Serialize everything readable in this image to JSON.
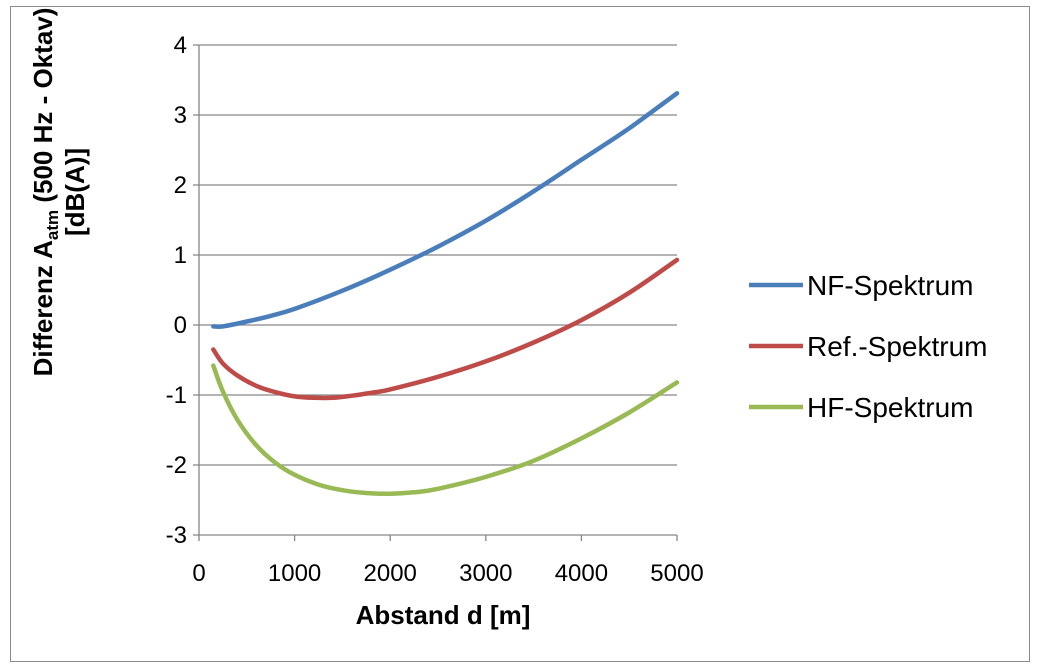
{
  "chart_data": {
    "type": "line",
    "xlabel": "Abstand d [m]",
    "ylabel": {
      "prefix": "Differenz A",
      "subscript": "atm",
      "suffix": " (500 Hz - Oktav)",
      "line2": "[dB(A)]"
    },
    "xlim": [
      0,
      5000
    ],
    "ylim": [
      -3,
      4
    ],
    "xticks": [
      0,
      1000,
      2000,
      3000,
      4000,
      5000
    ],
    "yticks": [
      4,
      3,
      2,
      1,
      0,
      -1,
      -2,
      -3
    ],
    "grid": "horizontal",
    "legend_position": "right",
    "series": [
      {
        "name": "NF-Spektrum",
        "color": "#4a7ebb",
        "x": [
          150,
          250,
          500,
          750,
          1000,
          1500,
          2000,
          2500,
          3000,
          3500,
          4000,
          4500,
          5000
        ],
        "y": [
          -0.02,
          -0.02,
          0.05,
          0.13,
          0.23,
          0.49,
          0.79,
          1.12,
          1.49,
          1.91,
          2.36,
          2.81,
          3.31
        ]
      },
      {
        "name": "Ref.-Spektrum",
        "color": "#be4b48",
        "x": [
          150,
          250,
          400,
          600,
          800,
          1000,
          1200,
          1400,
          1600,
          1800,
          2000,
          2500,
          3000,
          3500,
          4000,
          4500,
          5000
        ],
        "y": [
          -0.35,
          -0.55,
          -0.72,
          -0.87,
          -0.96,
          -1.02,
          -1.04,
          -1.04,
          -1.01,
          -0.97,
          -0.92,
          -0.74,
          -0.52,
          -0.25,
          0.07,
          0.46,
          0.93
        ]
      },
      {
        "name": "HF-Spektrum",
        "color": "#98b954",
        "x": [
          150,
          250,
          400,
          600,
          800,
          1000,
          1250,
          1500,
          1750,
          2000,
          2250,
          2500,
          3000,
          3500,
          4000,
          4500,
          5000
        ],
        "y": [
          -0.58,
          -0.95,
          -1.35,
          -1.72,
          -1.97,
          -2.14,
          -2.28,
          -2.36,
          -2.4,
          -2.41,
          -2.39,
          -2.34,
          -2.17,
          -1.94,
          -1.62,
          -1.25,
          -0.82
        ]
      }
    ]
  }
}
